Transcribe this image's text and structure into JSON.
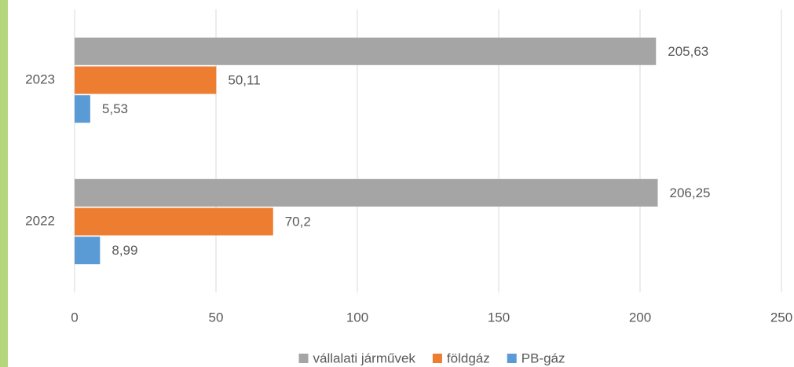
{
  "chart_data": {
    "type": "bar",
    "orientation": "horizontal",
    "categories": [
      "2023",
      "2022"
    ],
    "series": [
      {
        "name": "vállalati járművek",
        "color": "#a5a5a5",
        "values": [
          205.63,
          206.25
        ],
        "value_labels": [
          "205,63",
          "206,25"
        ]
      },
      {
        "name": "földgáz",
        "color": "#ed7d31",
        "values": [
          50.11,
          70.2
        ],
        "value_labels": [
          "50,11",
          "70,2"
        ]
      },
      {
        "name": "PB-gáz",
        "color": "#5b9bd5",
        "values": [
          5.53,
          8.99
        ],
        "value_labels": [
          "5,53",
          "8,99"
        ]
      }
    ],
    "xlim": [
      0,
      250
    ],
    "xticks": [
      0,
      50,
      100,
      150,
      200,
      250
    ],
    "grid": true,
    "legend": "bottom"
  }
}
